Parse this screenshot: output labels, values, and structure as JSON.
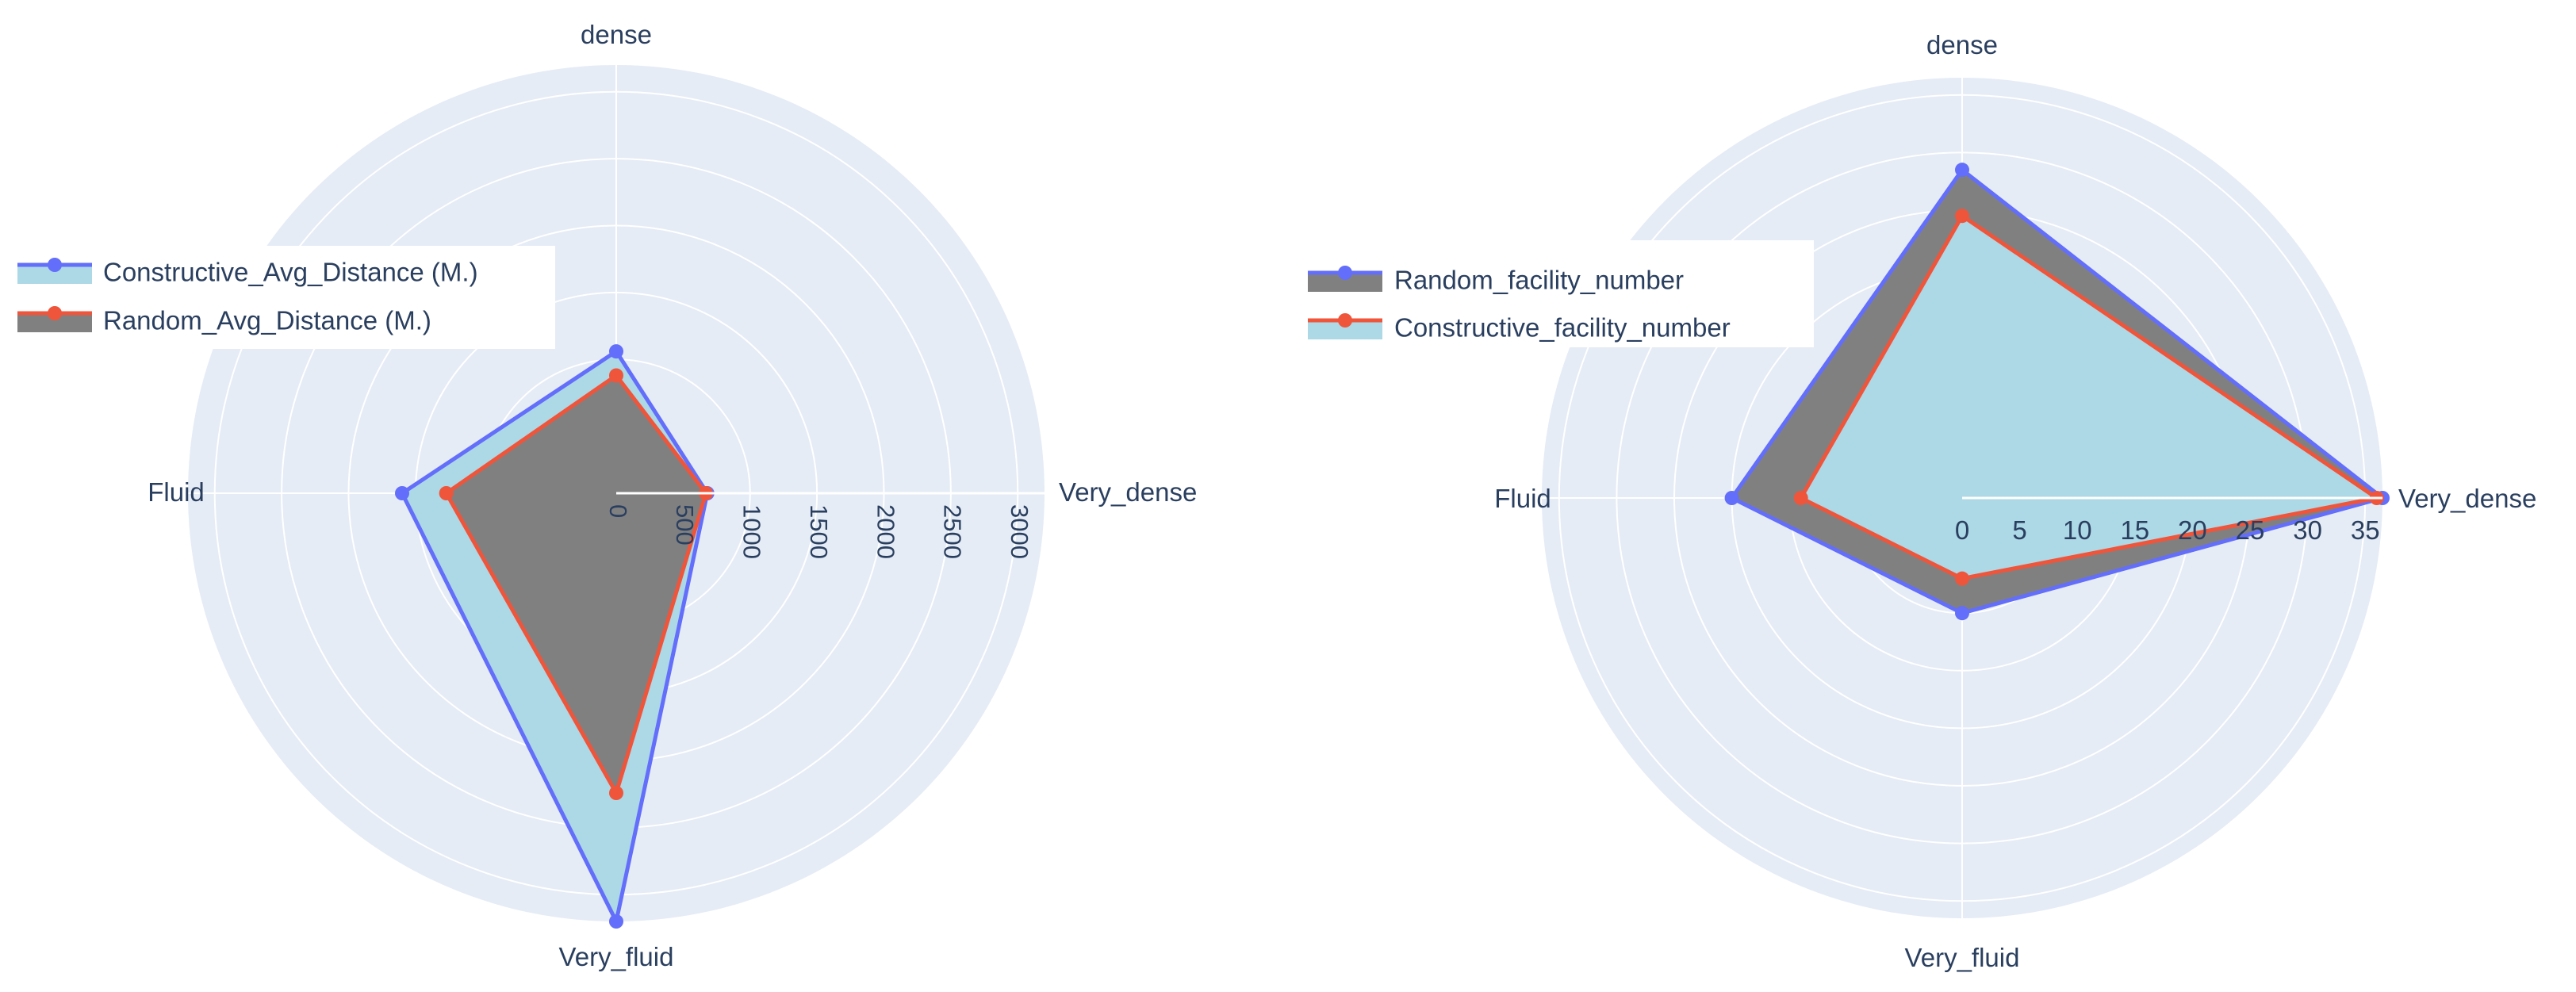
{
  "chart_data": [
    {
      "type": "radar",
      "categories": [
        "Very_dense",
        "dense",
        "Fluid",
        "Very_fluid"
      ],
      "radial_range": [
        0,
        3200
      ],
      "radial_ticks": [
        "0",
        "500",
        "1000",
        "1500",
        "2000",
        "2500",
        "3000"
      ],
      "legend_position": "top-left",
      "series": [
        {
          "name": "Constructive_Avg_Distance (M.)",
          "values": [
            680,
            1060,
            1600,
            3200
          ],
          "line_color": "#636efa",
          "fill_color": "#add8e6"
        },
        {
          "name": "Random_Avg_Distance (M.)",
          "values": [
            670,
            880,
            1270,
            2240
          ],
          "line_color": "#ef553b",
          "fill_color": "#808080"
        }
      ]
    },
    {
      "type": "radar",
      "categories": [
        "Very_dense",
        "dense",
        "Fluid",
        "Very_fluid"
      ],
      "radial_range": [
        0,
        36.5
      ],
      "radial_ticks": [
        "0",
        "5",
        "10",
        "15",
        "20",
        "25",
        "30",
        "35"
      ],
      "legend_position": "top-left",
      "series": [
        {
          "name": "Random_facility_number",
          "values": [
            36.5,
            28.5,
            20,
            10
          ],
          "line_color": "#636efa",
          "fill_color": "#808080"
        },
        {
          "name": "Constructive_facility_number",
          "values": [
            36,
            24.5,
            14,
            7
          ],
          "line_color": "#ef553b",
          "fill_color": "#add8e6"
        }
      ]
    }
  ],
  "colors": {
    "polar_bg": "#e5ecf6",
    "grid": "#ffffff",
    "text": "#2a3f5f"
  }
}
